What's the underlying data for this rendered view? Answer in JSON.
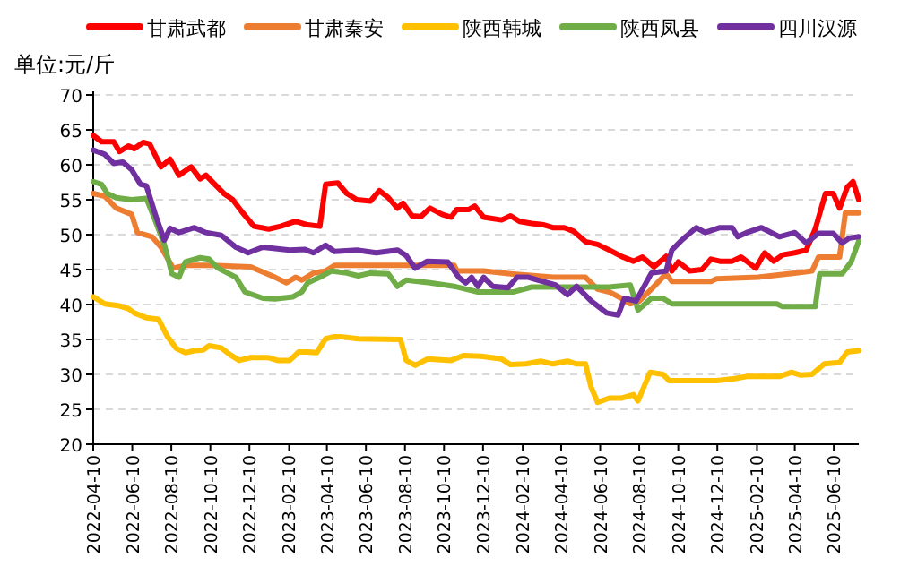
{
  "chart_data": {
    "type": "line",
    "ylabel": "单位:元/斤",
    "legend": "top",
    "grid": "y",
    "marker": "none",
    "line_style": "solid",
    "xlim": [
      "2022-04-10",
      "2025-07-19"
    ],
    "ylim": [
      20,
      70
    ],
    "yticks": [
      20,
      25,
      30,
      35,
      40,
      45,
      50,
      55,
      60,
      65,
      70
    ],
    "xticks": [
      "2022-04-10",
      "2022-06-10",
      "2022-08-10",
      "2022-10-10",
      "2022-12-10",
      "2023-02-10",
      "2023-04-10",
      "2023-06-10",
      "2023-08-10",
      "2023-10-10",
      "2023-12-10",
      "2024-02-10",
      "2024-04-10",
      "2024-06-10",
      "2024-08-10",
      "2024-10-10",
      "2024-12-10",
      "2025-02-10",
      "2025-04-10",
      "2025-06-10"
    ],
    "series": [
      {
        "name": "甘肃武都",
        "color": "#ff0000",
        "x": [
          "2022-04-10",
          "2022-04-23",
          "2022-05-12",
          "2022-05-21",
          "2022-06-04",
          "2022-06-13",
          "2022-06-27",
          "2022-07-07",
          "2022-07-25",
          "2022-08-08",
          "2022-08-22",
          "2022-09-10",
          "2022-09-24",
          "2022-10-03",
          "2022-10-17",
          "2022-10-31",
          "2022-11-14",
          "2022-11-28",
          "2022-12-17",
          "2023-01-09",
          "2023-01-28",
          "2023-02-20",
          "2023-03-11",
          "2023-03-30",
          "2023-04-08",
          "2023-04-27",
          "2023-05-11",
          "2023-05-27",
          "2023-06-17",
          "2023-07-01",
          "2023-07-15",
          "2023-07-29",
          "2023-08-07",
          "2023-08-21",
          "2023-09-04",
          "2023-09-18",
          "2023-10-07",
          "2023-10-21",
          "2023-10-30",
          "2023-11-18",
          "2023-11-27",
          "2023-12-11",
          "2024-01-08",
          "2024-01-22",
          "2024-02-05",
          "2024-02-24",
          "2024-03-14",
          "2024-03-28",
          "2024-04-15",
          "2024-04-29",
          "2024-05-18",
          "2024-06-06",
          "2024-06-24",
          "2024-07-13",
          "2024-08-01",
          "2024-08-15",
          "2024-09-02",
          "2024-09-21",
          "2024-09-30",
          "2024-10-10",
          "2024-10-28",
          "2024-11-16",
          "2024-11-30",
          "2024-12-14",
          "2025-01-02",
          "2025-01-16",
          "2025-02-08",
          "2025-02-22",
          "2025-03-08",
          "2025-03-22",
          "2025-04-10",
          "2025-04-28",
          "2025-05-12",
          "2025-05-28",
          "2025-06-09",
          "2025-06-19",
          "2025-07-01",
          "2025-07-10",
          "2025-07-19"
        ],
        "values": [
          64.2,
          63.3,
          63.3,
          61.9,
          62.7,
          62.3,
          63.2,
          63,
          59.7,
          60.8,
          58.5,
          59.7,
          58,
          58.5,
          57.2,
          55.9,
          55,
          53.3,
          51.2,
          50.8,
          51.2,
          51.9,
          51.4,
          51.2,
          57.2,
          57.4,
          55.9,
          55,
          54.8,
          56.3,
          55.3,
          53.8,
          54.5,
          52.7,
          52.6,
          53.8,
          52.9,
          52.5,
          53.6,
          53.6,
          54.1,
          52.5,
          52.1,
          52.7,
          51.9,
          51.6,
          51.4,
          51,
          51,
          50.5,
          49,
          48.6,
          47.8,
          46.9,
          46.2,
          46.8,
          45.4,
          46.9,
          44.8,
          46.1,
          44.8,
          45,
          46.5,
          46.2,
          46.2,
          46.8,
          45.2,
          47.4,
          46.2,
          47.1,
          47.4,
          47.8,
          50.8,
          55.9,
          55.9,
          53.8,
          56.8,
          57.6,
          55
        ]
      },
      {
        "name": "甘肃秦安",
        "color": "#ed7d31",
        "x": [
          "2022-04-10",
          "2022-04-28",
          "2022-05-16",
          "2022-06-09",
          "2022-06-18",
          "2022-07-11",
          "2022-07-25",
          "2022-08-13",
          "2022-09-01",
          "2022-10-08",
          "2022-12-12",
          "2023-01-19",
          "2023-02-06",
          "2023-02-20",
          "2023-03-02",
          "2023-03-20",
          "2023-04-08",
          "2023-04-22",
          "2023-10-26",
          "2023-10-30",
          "2023-12-11",
          "2024-01-22",
          "2024-03-28",
          "2024-05-18",
          "2024-06-06",
          "2024-06-24",
          "2024-07-13",
          "2024-07-27",
          "2024-08-10",
          "2024-08-29",
          "2024-09-21",
          "2024-09-30",
          "2024-11-30",
          "2024-12-09",
          "2025-02-12",
          "2025-03-31",
          "2025-04-10",
          "2025-05-07",
          "2025-05-17",
          "2025-06-19",
          "2025-06-28",
          "2025-07-19"
        ],
        "values": [
          55.9,
          55.5,
          53.8,
          52.9,
          50.3,
          49.7,
          48.2,
          45.2,
          45.6,
          45.6,
          45.4,
          43.9,
          43.1,
          43.9,
          43.5,
          44.5,
          44.8,
          45.6,
          45.6,
          44.8,
          44.8,
          44.4,
          43.9,
          43.9,
          42.2,
          41.8,
          40.9,
          40.1,
          40.5,
          42.2,
          44.4,
          43.3,
          43.3,
          43.7,
          43.9,
          44.4,
          44.5,
          44.8,
          46.8,
          46.8,
          53.1,
          53.1
        ]
      },
      {
        "name": "陕西韩城",
        "color": "#ffc000",
        "x": [
          "2022-04-10",
          "2022-04-28",
          "2022-05-21",
          "2022-06-04",
          "2022-06-13",
          "2022-07-02",
          "2022-07-21",
          "2022-08-04",
          "2022-08-18",
          "2022-09-01",
          "2022-09-15",
          "2022-09-29",
          "2022-10-08",
          "2022-10-27",
          "2022-11-10",
          "2022-11-24",
          "2022-12-12",
          "2023-01-09",
          "2023-01-23",
          "2023-02-11",
          "2023-02-25",
          "2023-03-11",
          "2023-03-25",
          "2023-04-08",
          "2023-04-22",
          "2023-05-01",
          "2023-05-29",
          "2023-08-03",
          "2023-08-12",
          "2023-08-26",
          "2023-09-14",
          "2023-10-21",
          "2023-11-09",
          "2023-12-07",
          "2024-01-08",
          "2024-01-22",
          "2024-02-15",
          "2024-03-09",
          "2024-03-28",
          "2024-04-20",
          "2024-05-04",
          "2024-05-18",
          "2024-05-27",
          "2024-06-06",
          "2024-06-24",
          "2024-07-13",
          "2024-08-01",
          "2024-08-08",
          "2024-08-27",
          "2024-09-16",
          "2024-09-26",
          "2024-12-09",
          "2025-01-06",
          "2025-01-25",
          "2025-03-17",
          "2025-04-05",
          "2025-04-19",
          "2025-05-07",
          "2025-05-26",
          "2025-06-19",
          "2025-07-01",
          "2025-07-19"
        ],
        "values": [
          41.1,
          40.1,
          39.8,
          39.4,
          38.8,
          38.1,
          37.9,
          35.4,
          33.7,
          33.1,
          33.4,
          33.5,
          34.1,
          33.8,
          32.8,
          32,
          32.4,
          32.4,
          32,
          32,
          33.2,
          33.2,
          33.1,
          35.1,
          35.4,
          35.4,
          35.1,
          35,
          32,
          31.3,
          32.2,
          32,
          32.7,
          32.6,
          32.2,
          31.4,
          31.5,
          31.9,
          31.5,
          31.9,
          31.5,
          31.5,
          28.1,
          26,
          26.6,
          26.6,
          27.1,
          26.2,
          30.3,
          30,
          29.1,
          29.1,
          29.4,
          29.7,
          29.7,
          30.3,
          29.9,
          30,
          31.5,
          31.7,
          33.2,
          33.4
        ]
      },
      {
        "name": "陕西凤县",
        "color": "#70ad47",
        "x": [
          "2022-04-10",
          "2022-04-23",
          "2022-05-02",
          "2022-05-16",
          "2022-06-09",
          "2022-07-02",
          "2022-07-16",
          "2022-07-30",
          "2022-08-11",
          "2022-08-22",
          "2022-09-01",
          "2022-09-24",
          "2022-10-08",
          "2022-10-22",
          "2022-11-19",
          "2022-12-03",
          "2022-12-31",
          "2023-01-19",
          "2023-02-16",
          "2023-03-02",
          "2023-03-11",
          "2023-03-30",
          "2023-04-17",
          "2023-05-11",
          "2023-05-29",
          "2023-06-17",
          "2023-07-15",
          "2023-07-29",
          "2023-08-12",
          "2023-09-18",
          "2023-10-26",
          "2023-12-02",
          "2024-01-27",
          "2024-02-24",
          "2024-04-15",
          "2024-06-24",
          "2024-07-27",
          "2024-08-08",
          "2024-08-29",
          "2024-09-16",
          "2024-09-30",
          "2025-03-13",
          "2025-03-22",
          "2025-05-12",
          "2025-05-19",
          "2025-06-23",
          "2025-07-07",
          "2025-07-19"
        ],
        "values": [
          57.6,
          57.2,
          55.9,
          55.3,
          55,
          55.2,
          52,
          48.6,
          44.4,
          43.9,
          46.1,
          46.7,
          46.5,
          45.2,
          43.9,
          41.8,
          40.9,
          40.8,
          41.1,
          41.8,
          43.1,
          43.9,
          44.8,
          44.5,
          44.1,
          44.5,
          44.4,
          42.6,
          43.5,
          43.1,
          42.6,
          41.8,
          41.8,
          42.5,
          42.5,
          42.5,
          42.8,
          39.2,
          40.9,
          40.9,
          40.1,
          40.1,
          39.7,
          39.7,
          44.4,
          44.4,
          46.1,
          49.1
        ]
      },
      {
        "name": "四川汉源",
        "color": "#7030a0",
        "x": [
          "2022-04-10",
          "2022-04-28",
          "2022-05-12",
          "2022-05-26",
          "2022-06-09",
          "2022-06-23",
          "2022-07-02",
          "2022-07-16",
          "2022-07-30",
          "2022-08-08",
          "2022-08-22",
          "2022-09-15",
          "2022-10-03",
          "2022-10-27",
          "2022-11-19",
          "2022-12-08",
          "2022-12-31",
          "2023-02-11",
          "2023-03-06",
          "2023-03-20",
          "2023-04-08",
          "2023-04-22",
          "2023-05-27",
          "2023-06-26",
          "2023-07-29",
          "2023-08-12",
          "2023-08-26",
          "2023-09-14",
          "2023-10-16",
          "2023-11-02",
          "2023-11-13",
          "2023-11-22",
          "2023-12-02",
          "2023-12-11",
          "2023-12-25",
          "2024-01-18",
          "2024-02-01",
          "2024-02-19",
          "2024-03-04",
          "2024-04-01",
          "2024-04-20",
          "2024-05-04",
          "2024-05-27",
          "2024-06-20",
          "2024-07-08",
          "2024-07-18",
          "2024-08-05",
          "2024-08-29",
          "2024-09-21",
          "2024-09-30",
          "2024-10-14",
          "2024-11-07",
          "2024-11-21",
          "2024-12-14",
          "2025-01-02",
          "2025-01-11",
          "2025-01-25",
          "2025-02-17",
          "2025-03-17",
          "2025-04-10",
          "2025-04-28",
          "2025-05-17",
          "2025-06-09",
          "2025-06-23",
          "2025-07-04",
          "2025-07-19"
        ],
        "values": [
          62.1,
          61.5,
          60.2,
          60.4,
          59.3,
          57.2,
          57,
          52.9,
          49.2,
          50.9,
          50.3,
          51,
          50.3,
          49.9,
          48.2,
          47.4,
          48.2,
          47.8,
          47.9,
          47.4,
          48.5,
          47.6,
          47.8,
          47.4,
          47.8,
          47,
          45.2,
          46.2,
          46.1,
          43.9,
          43.1,
          43.9,
          42.6,
          43.9,
          42.6,
          42.4,
          43.9,
          43.9,
          43.5,
          42.8,
          41.4,
          42.6,
          40.5,
          38.8,
          38.5,
          40.9,
          40.5,
          44.5,
          44.8,
          47.8,
          49.1,
          51,
          50.3,
          51,
          51,
          49.7,
          50.3,
          51,
          49.7,
          50.3,
          48.8,
          50.2,
          50.2,
          48.8,
          49.5,
          49.7
        ]
      }
    ]
  }
}
